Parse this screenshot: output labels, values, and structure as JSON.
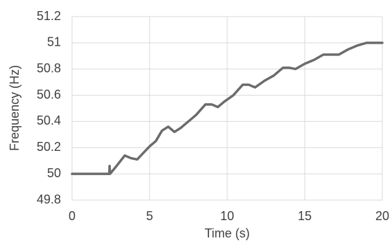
{
  "chart_data": {
    "type": "line",
    "xlabel": "Time (s)",
    "ylabel": "Frequency (Hz)",
    "x": [
      0,
      2.4,
      2.42,
      2.45,
      2.8,
      3.4,
      3.8,
      4.2,
      4.6,
      5,
      5.4,
      5.8,
      6.2,
      6.6,
      7,
      7.6,
      8,
      8.6,
      9,
      9.4,
      9.8,
      10.4,
      11,
      11.4,
      11.8,
      12.4,
      13,
      13.6,
      14,
      14.4,
      15,
      15.6,
      16.2,
      16.8,
      17.2,
      17.8,
      18.4,
      19,
      20
    ],
    "values": [
      50,
      50,
      50.06,
      50,
      50.05,
      50.14,
      50.12,
      50.11,
      50.16,
      50.21,
      50.25,
      50.33,
      50.36,
      50.32,
      50.35,
      50.41,
      50.45,
      50.53,
      50.53,
      50.51,
      50.55,
      50.6,
      50.68,
      50.68,
      50.66,
      50.71,
      50.75,
      50.81,
      50.81,
      50.8,
      50.84,
      50.87,
      50.91,
      50.91,
      50.91,
      50.95,
      50.98,
      51,
      51
    ],
    "color": "#6b6b6b",
    "xlim": [
      0,
      20
    ],
    "xticks": [
      0,
      5,
      10,
      15,
      20
    ],
    "ylim": [
      49.8,
      51.2
    ],
    "yticks": [
      49.8,
      50,
      50.2,
      50.4,
      50.6,
      50.8,
      51,
      51.2
    ],
    "grid": true
  }
}
